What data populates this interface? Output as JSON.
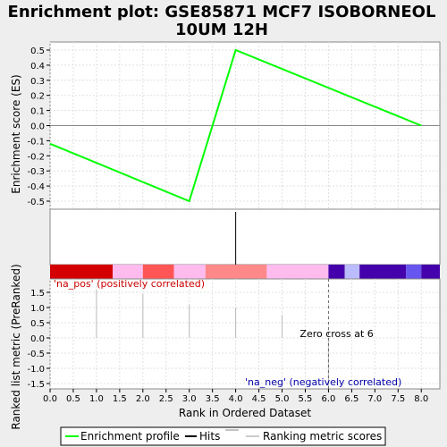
{
  "chart_data": {
    "type": "line",
    "title_line1": "Enrichment plot: GSE85871 MCF7 ISOBORNEOL",
    "title_line2": "10UM 12H",
    "xlabel": "Rank in Ordered Dataset",
    "es_ylabel": "Enrichment score (ES)",
    "metric_ylabel": "Ranked list metric (PreRanked)",
    "xlim": [
      0,
      8.4
    ],
    "x_ticks": [
      "0.0",
      "0.5",
      "1.0",
      "1.5",
      "2.0",
      "2.5",
      "3.0",
      "3.5",
      "4.0",
      "4.5",
      "5.0",
      "5.5",
      "6.0",
      "6.5",
      "7.0",
      "7.5",
      "8.0"
    ],
    "es_ylim": [
      -0.55,
      0.55
    ],
    "es_ticks": [
      "0.5",
      "0.4",
      "0.3",
      "0.2",
      "0.1",
      "0.0",
      "-0.1",
      "-0.2",
      "-0.3",
      "-0.4",
      "-0.5"
    ],
    "metric_ylim": [
      -1.65,
      1.65
    ],
    "metric_ticks": [
      "1.5",
      "1.0",
      "0.5",
      "0.0",
      "-0.5",
      "-1.0",
      "-1.5"
    ],
    "enrichment_profile": {
      "name": "Enrichment profile",
      "color": "#00ff00",
      "x": [
        0,
        3,
        4,
        8
      ],
      "y": [
        -0.12,
        -0.5,
        0.5,
        0.0
      ]
    },
    "hits": {
      "name": "Hits",
      "x": [
        4
      ]
    },
    "ranking_metric_scores": {
      "name": "Ranking metric scores",
      "x": [
        1,
        2,
        3,
        4,
        5,
        6,
        7,
        8
      ],
      "y": [
        1.6,
        1.45,
        1.1,
        1.0,
        0.75,
        -1.6,
        0.0,
        0.0
      ]
    },
    "color_bar": [
      {
        "from": 0.0,
        "to": 1.35,
        "color": "#d40000"
      },
      {
        "from": 1.35,
        "to": 2.0,
        "color": "#ffbbee"
      },
      {
        "from": 2.0,
        "to": 2.67,
        "color": "#ff5555"
      },
      {
        "from": 2.67,
        "to": 3.35,
        "color": "#ffbbee"
      },
      {
        "from": 3.35,
        "to": 4.67,
        "color": "#ff8888"
      },
      {
        "from": 4.67,
        "to": 6.0,
        "color": "#ffbbee"
      },
      {
        "from": 6.0,
        "to": 6.35,
        "color": "#4400aa"
      },
      {
        "from": 6.35,
        "to": 6.67,
        "color": "#bbbbff"
      },
      {
        "from": 6.67,
        "to": 7.67,
        "color": "#4400aa"
      },
      {
        "from": 7.67,
        "to": 8.0,
        "color": "#6655ee"
      },
      {
        "from": 8.0,
        "to": 8.4,
        "color": "#4400aa"
      }
    ],
    "zero_cross": {
      "x": 6,
      "label": "Zero cross at 6"
    },
    "pos_label": "'na_pos' (positively correlated)",
    "neg_label": "'na_neg' (negatively correlated)",
    "pos_color": "#cc0000",
    "neg_color": "#0000aa",
    "grid": true
  }
}
